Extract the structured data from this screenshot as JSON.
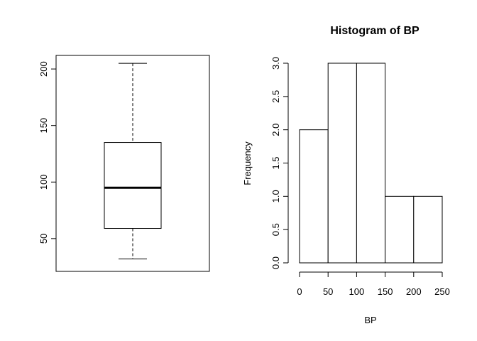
{
  "chart_data": [
    {
      "type": "boxplot",
      "title": "",
      "xlabel": "",
      "ylabel": "",
      "ylim": [
        21,
        212
      ],
      "yticks": [
        "50",
        "100",
        "150",
        "200"
      ],
      "stats": {
        "min": 32,
        "q1": 59,
        "median": 95,
        "q3": 135,
        "max": 205
      }
    },
    {
      "type": "bar",
      "title": "Histogram of BP",
      "xlabel": "BP",
      "ylabel": "Frequency",
      "xlim": [
        0,
        250
      ],
      "ylim": [
        0,
        3
      ],
      "xticks": [
        "0",
        "50",
        "100",
        "150",
        "200",
        "250"
      ],
      "yticks": [
        "0.0",
        "0.5",
        "1.0",
        "1.5",
        "2.0",
        "2.5",
        "3.0"
      ],
      "bins": [
        {
          "from": 0,
          "to": 50,
          "count": 2
        },
        {
          "from": 50,
          "to": 100,
          "count": 3
        },
        {
          "from": 100,
          "to": 150,
          "count": 3
        },
        {
          "from": 150,
          "to": 200,
          "count": 1
        },
        {
          "from": 200,
          "to": 250,
          "count": 1
        }
      ]
    }
  ]
}
